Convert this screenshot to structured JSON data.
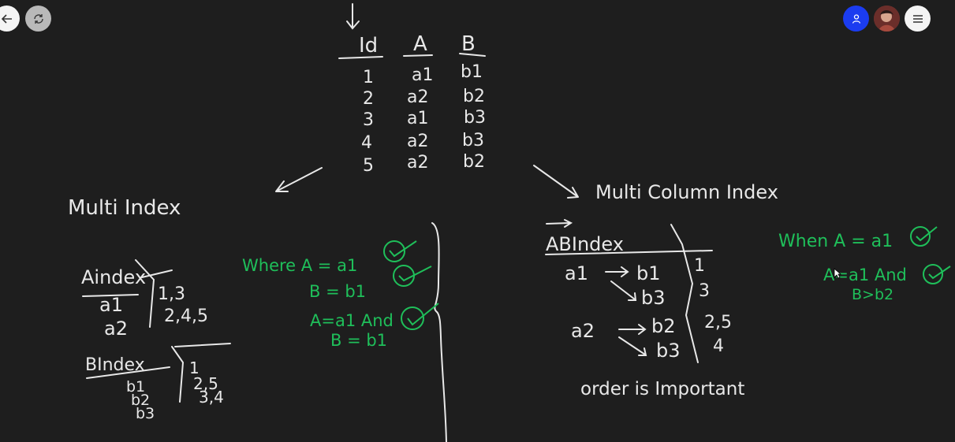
{
  "toolbar": {
    "back_icon": "arrow-left-icon",
    "sync_icon": "sync-icon",
    "user_icon": "user-icon",
    "menu_icon": "hamburger-menu-icon"
  },
  "colors": {
    "background": "#1e1e1e",
    "ink": "#e8e8e8",
    "green_ink": "#1fbf5a",
    "user_button": "#1b3cf0"
  },
  "table": {
    "headers": [
      "Id",
      "A",
      "B"
    ],
    "rows": [
      [
        "1",
        "a1",
        "b1"
      ],
      [
        "2",
        "a2",
        "b2"
      ],
      [
        "3",
        "a1",
        "b3"
      ],
      [
        "4",
        "a2",
        "b3"
      ],
      [
        "5",
        "a2",
        "b2"
      ]
    ]
  },
  "left": {
    "title": "Multi Index",
    "aindex": {
      "header": "Aindex",
      "rows": [
        [
          "a1",
          "1,3"
        ],
        [
          "a2",
          "2,4,5"
        ]
      ]
    },
    "bindex": {
      "header": "BIndex",
      "rows": [
        [
          "b1",
          "1"
        ],
        [
          "b2",
          "2,5"
        ],
        [
          "b3",
          "3,4"
        ]
      ]
    },
    "queries": [
      "Where A = a1",
      "B = b1",
      "A=a1 And",
      "B = b1"
    ]
  },
  "right": {
    "title": "Multi Column Index",
    "abindex": {
      "header": "ABIndex",
      "lines": [
        {
          "a": "a1",
          "b": "b1",
          "ids": "1"
        },
        {
          "a": "",
          "b": "b3",
          "ids": "3"
        },
        {
          "a": "a2",
          "b": "b2",
          "ids": "2,5"
        },
        {
          "a": "",
          "b": "b3",
          "ids": "4"
        }
      ]
    },
    "note": "order is Important",
    "queries": [
      "When A = a1",
      "A=a1 And",
      "B>b2"
    ]
  }
}
